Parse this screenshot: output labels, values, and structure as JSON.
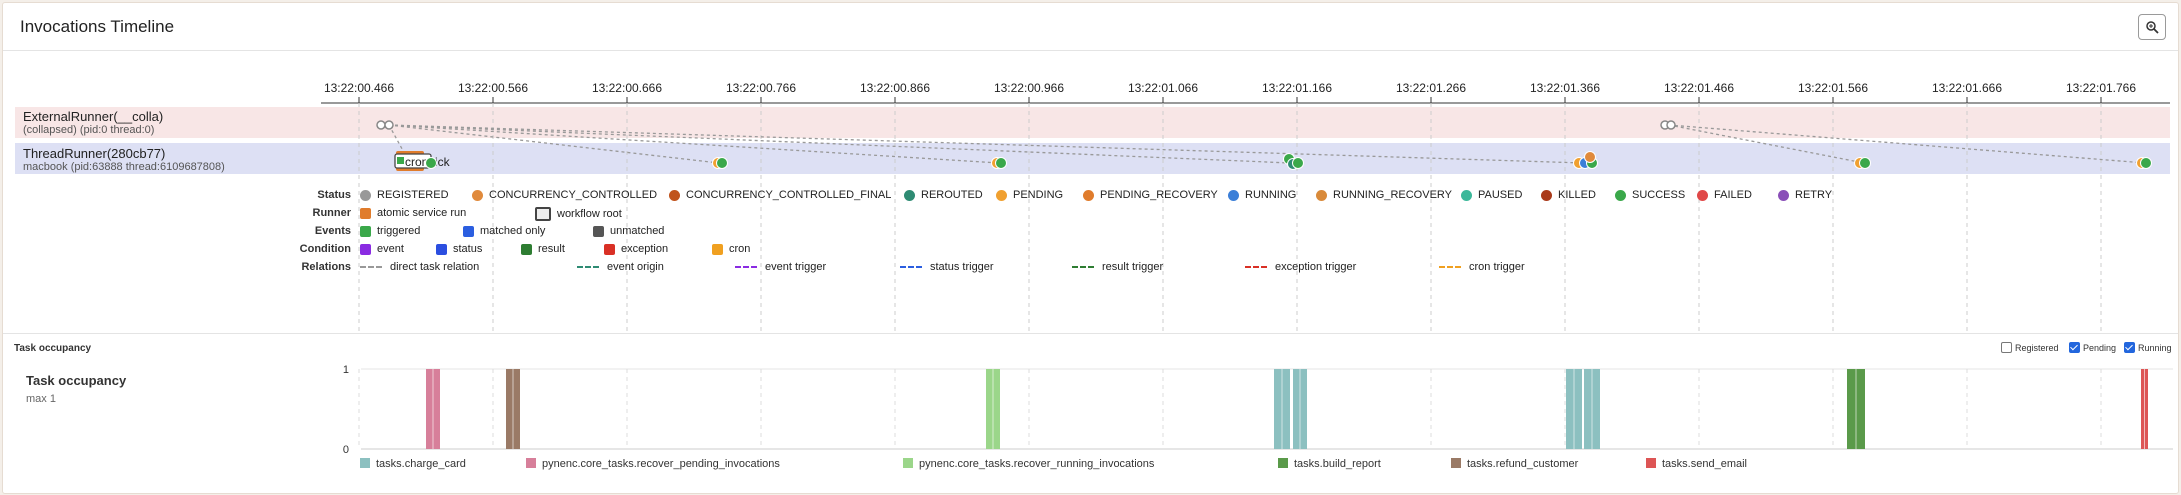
{
  "header": {
    "title": "Invocations Timeline",
    "zoom_icon": "magnifier-icon"
  },
  "timeline": {
    "ticks": [
      "13:22:00.466",
      "13:22:00.566",
      "13:22:00.666",
      "13:22:00.766",
      "13:22:00.866",
      "13:22:00.966",
      "13:22:01.066",
      "13:22:01.166",
      "13:22:01.266",
      "13:22:01.366",
      "13:22:01.466",
      "13:22:01.566",
      "13:22:01.666",
      "13:22:01.766"
    ],
    "lanes": [
      {
        "title": "ExternalRunner(__colla)",
        "sub": "(collapsed) (pid:0 thread:0)",
        "color": "#f8e6e6"
      },
      {
        "title": "ThreadRunner(280cb77)",
        "sub": "macbook (pid:63888 thread:6109687808)",
        "color": "#dde0f4"
      }
    ],
    "workflow_label": "cron:tick"
  },
  "legend": {
    "status": {
      "head": "Status",
      "items": [
        {
          "label": "REGISTERED",
          "color": "#999999"
        },
        {
          "label": "CONCURRENCY_CONTROLLED",
          "color": "#e08a3c"
        },
        {
          "label": "CONCURRENCY_CONTROLLED_FINAL",
          "color": "#c0531c"
        },
        {
          "label": "REROUTED",
          "color": "#2e8b73"
        },
        {
          "label": "PENDING",
          "color": "#f0a030"
        },
        {
          "label": "PENDING_RECOVERY",
          "color": "#e07c2c"
        },
        {
          "label": "RUNNING",
          "color": "#3b7fd8"
        },
        {
          "label": "RUNNING_RECOVERY",
          "color": "#d98a3a"
        },
        {
          "label": "PAUSED",
          "color": "#3cb89a"
        },
        {
          "label": "KILLED",
          "color": "#a93a1a"
        },
        {
          "label": "SUCCESS",
          "color": "#3aa84a"
        },
        {
          "label": "FAILED",
          "color": "#e04848"
        },
        {
          "label": "RETRY",
          "color": "#8a4fb8"
        }
      ]
    },
    "runner": {
      "head": "Runner",
      "items": [
        {
          "label": "atomic service run",
          "kind": "orange-square"
        },
        {
          "label": "workflow root",
          "kind": "outlined-square"
        }
      ]
    },
    "events": {
      "head": "Events",
      "items": [
        {
          "label": "triggered",
          "color": "#3aa84a"
        },
        {
          "label": "matched only",
          "color": "#2b5ee0"
        },
        {
          "label": "unmatched",
          "color": "#555555"
        }
      ]
    },
    "condition": {
      "head": "Condition",
      "items": [
        {
          "label": "event",
          "color": "#8a2be2"
        },
        {
          "label": "status",
          "color": "#2b4ee0"
        },
        {
          "label": "result",
          "color": "#2e7d32"
        },
        {
          "label": "exception",
          "color": "#d93025"
        },
        {
          "label": "cron",
          "color": "#f0a020"
        }
      ]
    },
    "relations": {
      "head": "Relations",
      "items": [
        {
          "label": "direct task relation",
          "color": "#999999"
        },
        {
          "label": "event origin",
          "color": "#2e8b73"
        },
        {
          "label": "event trigger",
          "color": "#8a2be2"
        },
        {
          "label": "status trigger",
          "color": "#2b5ee0"
        },
        {
          "label": "result trigger",
          "color": "#2e7d32"
        },
        {
          "label": "exception trigger",
          "color": "#d93025"
        },
        {
          "label": "cron trigger",
          "color": "#f0a020"
        }
      ]
    }
  },
  "occupancy": {
    "header": "Task occupancy",
    "checkboxes": [
      {
        "label": "Registered",
        "checked": false
      },
      {
        "label": "Pending",
        "checked": true
      },
      {
        "label": "Running",
        "checked": true
      }
    ],
    "title": "Task occupancy",
    "max_label": "max 1",
    "y_ticks": [
      "1",
      "0"
    ],
    "tasks": [
      {
        "label": "tasks.charge_card",
        "color": "#8cc0c0"
      },
      {
        "label": "pynenc.core_tasks.recover_pending_invocations",
        "color": "#d77f9a"
      },
      {
        "label": "pynenc.core_tasks.recover_running_invocations",
        "color": "#9bd68a"
      },
      {
        "label": "tasks.build_report",
        "color": "#5a9a4a"
      },
      {
        "label": "tasks.refund_customer",
        "color": "#9a7a66"
      },
      {
        "label": "tasks.send_email",
        "color": "#dd5555"
      }
    ]
  }
}
